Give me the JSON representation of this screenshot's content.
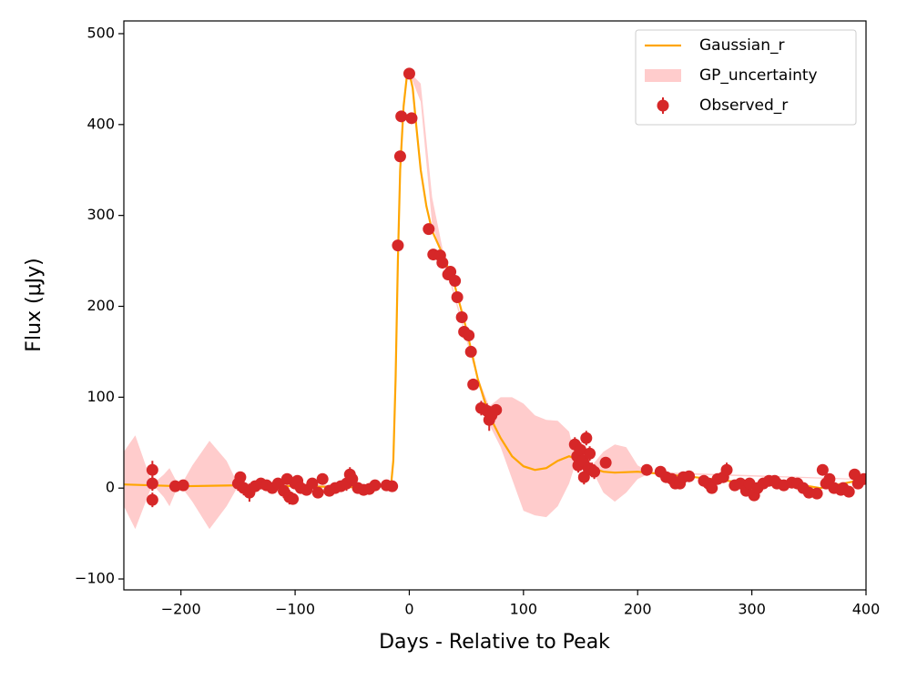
{
  "chart_data": {
    "type": "line",
    "xlabel": "Days - Relative to Peak",
    "ylabel": "Flux (μJy)",
    "xlim": [
      -250,
      400
    ],
    "ylim": [
      -112,
      514
    ],
    "xticks": [
      {
        "value": -200,
        "label": "−200"
      },
      {
        "value": -100,
        "label": "−100"
      },
      0,
      100,
      200,
      300,
      400
    ],
    "yticks": [
      {
        "value": -100,
        "label": "−100"
      },
      0,
      100,
      200,
      300,
      400,
      500
    ],
    "legend": "upper right",
    "series": [
      {
        "name": "Gaussian_r",
        "type": "line",
        "color": "#ffa500",
        "x": [
          -250,
          -200,
          -150,
          -100,
          -50,
          -20,
          -16,
          -14,
          -12,
          -10,
          -8,
          -5,
          -2,
          0,
          3,
          6,
          10,
          15,
          20,
          30,
          40,
          50,
          60,
          70,
          80,
          90,
          100,
          110,
          120,
          130,
          140,
          150,
          160,
          170,
          180,
          200,
          250,
          300,
          350,
          360,
          400
        ],
        "values": [
          4,
          2,
          3,
          2,
          1,
          2,
          3,
          30,
          120,
          250,
          350,
          420,
          455,
          457,
          440,
          400,
          350,
          310,
          283,
          255,
          222,
          175,
          120,
          80,
          55,
          35,
          24,
          20,
          22,
          30,
          35,
          30,
          22,
          18,
          17,
          18,
          12,
          5,
          2,
          0,
          10
        ]
      },
      {
        "name": "GP_uncertainty",
        "type": "band",
        "color": "#ffcccc",
        "x": [
          -250,
          -240,
          -225,
          -215,
          -210,
          -205,
          -200,
          -190,
          -175,
          -160,
          -150,
          -140,
          -20,
          -14,
          -12,
          -10,
          -8,
          -5,
          0,
          10,
          20,
          30,
          60,
          70,
          80,
          90,
          100,
          110,
          120,
          130,
          140,
          145,
          160,
          170,
          180,
          190,
          200,
          210,
          400
        ],
        "upper": [
          40,
          58,
          4,
          15,
          22,
          10,
          3,
          25,
          52,
          30,
          4,
          4,
          3,
          30,
          120,
          250,
          350,
          420,
          458,
          445,
          320,
          258,
          122,
          90,
          100,
          100,
          93,
          80,
          75,
          74,
          62,
          35,
          25,
          40,
          48,
          45,
          25,
          18,
          10
        ],
        "lower": [
          -20,
          -45,
          4,
          -10,
          -20,
          -5,
          2,
          -15,
          -45,
          -20,
          2,
          3,
          2,
          30,
          120,
          250,
          350,
          420,
          457,
          425,
          290,
          252,
          118,
          70,
          45,
          10,
          -25,
          -30,
          -32,
          -20,
          5,
          25,
          20,
          -5,
          -15,
          -5,
          10,
          16,
          9
        ]
      },
      {
        "name": "Observed_r",
        "type": "errorbar",
        "color": "#d62728",
        "x": [
          -225,
          -225,
          -225,
          -205,
          -198,
          -150,
          -148,
          -145,
          -140,
          -135,
          -130,
          -125,
          -120,
          -115,
          -110,
          -107,
          -105,
          -102,
          -100,
          -98,
          -95,
          -90,
          -85,
          -80,
          -76,
          -70,
          -65,
          -60,
          -55,
          -52,
          -50,
          -45,
          -40,
          -35,
          -30,
          -20,
          -15,
          -10,
          -8,
          -7,
          0,
          2,
          17,
          21,
          27,
          29,
          34,
          36,
          40,
          42,
          46,
          48,
          52,
          54,
          56,
          63,
          68,
          70,
          72,
          76,
          145,
          147,
          148,
          150,
          152,
          153,
          155,
          157,
          158,
          160,
          162,
          172,
          208,
          220,
          225,
          230,
          233,
          237,
          240,
          245,
          258,
          262,
          265,
          270,
          275,
          278,
          285,
          290,
          295,
          298,
          302,
          305,
          310,
          315,
          320,
          322,
          328,
          335,
          340,
          345,
          350,
          357,
          362,
          365,
          368,
          372,
          378,
          380,
          385,
          390,
          393,
          398
        ],
        "values": [
          20,
          5,
          -13,
          2,
          3,
          5,
          12,
          0,
          -5,
          2,
          5,
          3,
          0,
          5,
          -3,
          10,
          -10,
          -12,
          5,
          8,
          0,
          -2,
          5,
          -5,
          10,
          -3,
          0,
          2,
          5,
          15,
          10,
          0,
          -2,
          -1,
          3,
          3,
          2,
          267,
          365,
          409,
          456,
          407,
          285,
          257,
          256,
          248,
          235,
          238,
          228,
          210,
          188,
          172,
          168,
          150,
          114,
          88,
          85,
          75,
          80,
          86,
          48,
          35,
          25,
          42,
          30,
          12,
          55,
          22,
          38,
          20,
          18,
          28,
          20,
          18,
          12,
          10,
          5,
          5,
          12,
          13,
          8,
          5,
          0,
          10,
          12,
          20,
          3,
          5,
          -3,
          5,
          -8,
          0,
          5,
          8,
          8,
          5,
          3,
          6,
          5,
          0,
          -5,
          -6,
          20,
          5,
          10,
          0,
          -2,
          0,
          -4,
          15,
          5,
          10
        ],
        "errors": [
          10,
          8,
          8,
          6,
          6,
          8,
          6,
          8,
          10,
          6,
          6,
          6,
          6,
          6,
          8,
          6,
          8,
          6,
          6,
          6,
          6,
          6,
          6,
          6,
          6,
          6,
          6,
          6,
          8,
          8,
          8,
          6,
          6,
          6,
          6,
          6,
          6,
          6,
          6,
          6,
          6,
          6,
          6,
          6,
          6,
          6,
          6,
          6,
          6,
          6,
          6,
          6,
          6,
          6,
          6,
          8,
          8,
          12,
          10,
          6,
          8,
          8,
          8,
          8,
          8,
          8,
          8,
          8,
          8,
          8,
          8,
          6,
          6,
          6,
          6,
          6,
          6,
          6,
          6,
          6,
          6,
          6,
          6,
          6,
          6,
          8,
          6,
          6,
          6,
          6,
          6,
          6,
          6,
          6,
          6,
          6,
          6,
          6,
          6,
          6,
          6,
          6,
          6,
          6,
          6,
          6,
          6,
          6,
          6,
          6,
          6,
          6
        ]
      }
    ]
  }
}
